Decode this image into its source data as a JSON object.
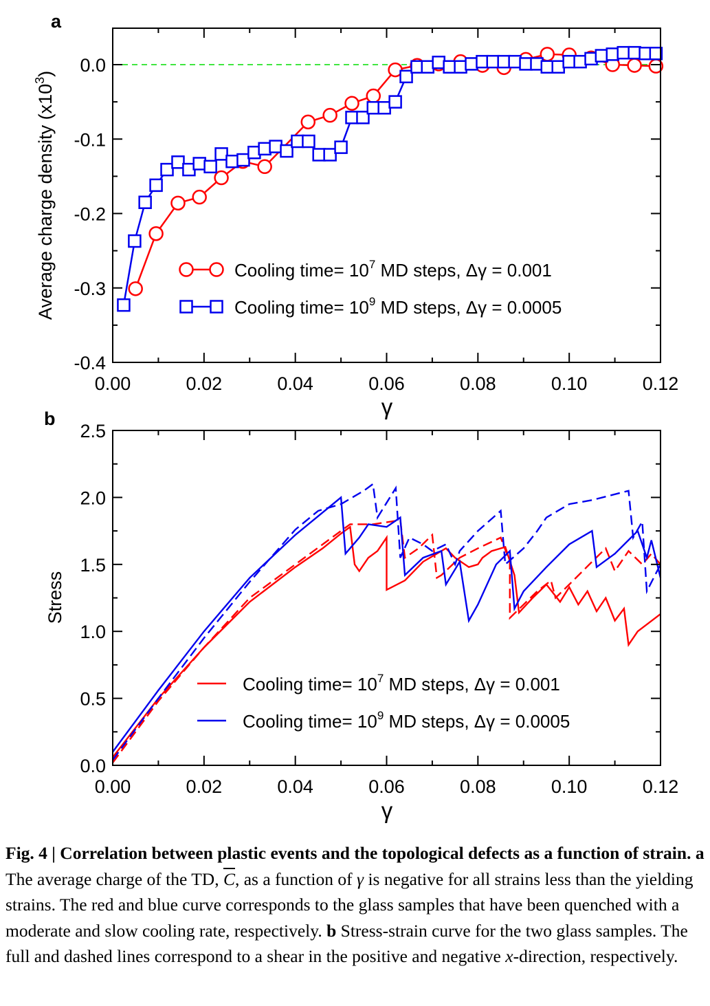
{
  "chart_data": [
    {
      "panel": "a",
      "type": "line",
      "ylabel": "Average charge density (x10",
      "ylabel_exp": "3",
      "ylabel_close": ")",
      "xlabel": "γ",
      "xlim": [
        0,
        0.12
      ],
      "ylim": [
        -0.4,
        0.05
      ],
      "xticks": [
        "0.00",
        "0.02",
        "0.04",
        "0.06",
        "0.08",
        "0.10",
        "0.12"
      ],
      "yticks": [
        "0.0",
        "-0.1",
        "-0.2",
        "-0.3",
        "-0.4"
      ],
      "reference_line": {
        "y": 0,
        "color": "#00dd00",
        "style": "dashed"
      },
      "legend_position": "lower-right",
      "series": [
        {
          "name_pre": "Cooling time= 10",
          "name_exp": "7",
          "name_post": " MD steps, Δγ = 0.001",
          "color": "#ff0000",
          "marker": "circle",
          "x": [
            0.005,
            0.0095,
            0.0143,
            0.019,
            0.0238,
            0.0285,
            0.0333,
            0.0428,
            0.0476,
            0.0524,
            0.0571,
            0.0619,
            0.0667,
            0.0714,
            0.0762,
            0.081,
            0.0857,
            0.0905,
            0.0952,
            0.1,
            0.1048,
            0.1095,
            0.1143,
            0.119
          ],
          "y": [
            -0.301,
            -0.227,
            -0.186,
            -0.178,
            -0.152,
            -0.13,
            -0.137,
            -0.077,
            -0.068,
            -0.052,
            -0.042,
            -0.007,
            -0.001,
            0.001,
            0.004,
            -0.001,
            -0.004,
            0.007,
            0.014,
            0.013,
            0.009,
            0.0,
            -0.001,
            -0.002
          ]
        },
        {
          "name_pre": "Cooling time= 10",
          "name_exp": "9",
          "name_post": " MD steps, Δγ = 0.0005",
          "color": "#0000ee",
          "marker": "square",
          "x": [
            0.0024,
            0.0048,
            0.0071,
            0.0095,
            0.0119,
            0.0143,
            0.0167,
            0.019,
            0.0214,
            0.0238,
            0.0262,
            0.0286,
            0.031,
            0.0333,
            0.0357,
            0.0381,
            0.0405,
            0.0429,
            0.0452,
            0.0476,
            0.05,
            0.0524,
            0.0548,
            0.0571,
            0.0595,
            0.0619,
            0.0643,
            0.0667,
            0.069,
            0.0714,
            0.0738,
            0.0762,
            0.0786,
            0.081,
            0.0833,
            0.0857,
            0.0881,
            0.0905,
            0.0929,
            0.0952,
            0.0976,
            0.1,
            0.1024,
            0.1048,
            0.1071,
            0.1095,
            0.1119,
            0.1143,
            0.1167,
            0.119
          ],
          "y": [
            -0.323,
            -0.237,
            -0.185,
            -0.162,
            -0.141,
            -0.131,
            -0.141,
            -0.133,
            -0.137,
            -0.12,
            -0.13,
            -0.128,
            -0.118,
            -0.113,
            -0.11,
            -0.116,
            -0.103,
            -0.103,
            -0.121,
            -0.121,
            -0.111,
            -0.071,
            -0.071,
            -0.058,
            -0.058,
            -0.05,
            -0.016,
            -0.003,
            -0.003,
            0.003,
            -0.003,
            -0.003,
            0.001,
            0.004,
            0.004,
            0.004,
            0.004,
            0.001,
            0.001,
            -0.003,
            -0.003,
            0.004,
            0.004,
            0.008,
            0.012,
            0.014,
            0.016,
            0.016,
            0.015,
            0.015
          ]
        }
      ]
    },
    {
      "panel": "b",
      "type": "line",
      "ylabel": "Stress",
      "xlabel": "γ",
      "xlim": [
        0,
        0.12
      ],
      "ylim": [
        0,
        2.5
      ],
      "xticks": [
        "0.00",
        "0.02",
        "0.04",
        "0.06",
        "0.08",
        "0.10",
        "0.12"
      ],
      "yticks": [
        "0.0",
        "0.5",
        "1.0",
        "1.5",
        "2.0",
        "2.5"
      ],
      "legend_position": "lower-right",
      "legend": [
        {
          "name_pre": "Cooling time= 10",
          "name_exp": "7",
          "name_post": " MD steps, Δγ = 0.001",
          "color": "#ff0000"
        },
        {
          "name_pre": "Cooling time= 10",
          "name_exp": "9",
          "name_post": " MD steps, Δγ = 0.0005",
          "color": "#0000ee"
        }
      ],
      "series": [
        {
          "color": "#ff0000",
          "style": "solid",
          "x": [
            0.0,
            0.01,
            0.02,
            0.03,
            0.04,
            0.046,
            0.05,
            0.052,
            0.053,
            0.054,
            0.056,
            0.058,
            0.06,
            0.06,
            0.064,
            0.068,
            0.071,
            0.073,
            0.075,
            0.078,
            0.08,
            0.081,
            0.083,
            0.086,
            0.088,
            0.089,
            0.092,
            0.095,
            0.098,
            0.1,
            0.102,
            0.104,
            0.106,
            0.108,
            0.11,
            0.112,
            0.113,
            0.115,
            0.12
          ],
          "y": [
            0.06,
            0.5,
            0.88,
            1.22,
            1.48,
            1.62,
            1.73,
            1.78,
            1.5,
            1.45,
            1.55,
            1.6,
            1.7,
            1.31,
            1.38,
            1.52,
            1.58,
            1.62,
            1.55,
            1.48,
            1.5,
            1.55,
            1.6,
            1.63,
            1.42,
            1.14,
            1.25,
            1.35,
            1.22,
            1.33,
            1.2,
            1.3,
            1.15,
            1.25,
            1.08,
            1.17,
            0.9,
            1.0,
            1.13
          ]
        },
        {
          "color": "#ff0000",
          "style": "dashed",
          "x": [
            0.0,
            0.01,
            0.02,
            0.03,
            0.04,
            0.046,
            0.05,
            0.052,
            0.057,
            0.063,
            0.064,
            0.067,
            0.07,
            0.071,
            0.072,
            0.076,
            0.08,
            0.085,
            0.087,
            0.087,
            0.093,
            0.096,
            0.097,
            0.1,
            0.105,
            0.108,
            0.11,
            0.113,
            0.116,
            0.118,
            0.12
          ],
          "y": [
            0.02,
            0.48,
            0.88,
            1.25,
            1.5,
            1.65,
            1.75,
            1.8,
            1.8,
            1.83,
            1.55,
            1.62,
            1.72,
            1.4,
            1.42,
            1.55,
            1.62,
            1.7,
            1.52,
            1.1,
            1.3,
            1.38,
            1.25,
            1.35,
            1.52,
            1.62,
            1.45,
            1.6,
            1.5,
            1.58,
            1.5
          ]
        },
        {
          "color": "#0000ee",
          "style": "solid",
          "x": [
            0.0,
            0.01,
            0.02,
            0.03,
            0.04,
            0.05,
            0.051,
            0.054,
            0.056,
            0.06,
            0.063,
            0.064,
            0.068,
            0.072,
            0.073,
            0.076,
            0.078,
            0.08,
            0.084,
            0.087,
            0.088,
            0.09,
            0.095,
            0.1,
            0.105,
            0.106,
            0.11,
            0.115,
            0.117,
            0.118,
            0.12
          ],
          "y": [
            0.1,
            0.56,
            1.0,
            1.4,
            1.72,
            2.0,
            1.58,
            1.7,
            1.8,
            1.78,
            1.85,
            1.42,
            1.55,
            1.6,
            1.35,
            1.52,
            1.08,
            1.2,
            1.5,
            1.6,
            1.17,
            1.3,
            1.48,
            1.65,
            1.75,
            1.48,
            1.58,
            1.75,
            1.55,
            1.68,
            1.4
          ]
        },
        {
          "color": "#0000ee",
          "style": "dashed",
          "x": [
            0.0,
            0.01,
            0.02,
            0.03,
            0.04,
            0.045,
            0.05,
            0.055,
            0.057,
            0.058,
            0.062,
            0.063,
            0.065,
            0.068,
            0.07,
            0.073,
            0.075,
            0.076,
            0.08,
            0.085,
            0.086,
            0.09,
            0.093,
            0.095,
            0.1,
            0.105,
            0.113,
            0.114,
            0.116,
            0.117,
            0.12
          ],
          "y": [
            0.04,
            0.5,
            0.95,
            1.37,
            1.76,
            1.9,
            1.95,
            2.05,
            2.1,
            1.85,
            2.07,
            1.55,
            1.7,
            1.65,
            1.6,
            1.65,
            1.5,
            1.6,
            1.75,
            1.9,
            1.5,
            1.62,
            1.75,
            1.85,
            1.95,
            1.98,
            2.05,
            1.7,
            1.82,
            1.3,
            1.5
          ]
        }
      ]
    }
  ],
  "caption": {
    "fig": "Fig. 4 | Correlation between plastic events and the topological defects as a function of strain.",
    "a_label": "a",
    "a_text_1": " The average charge of the TD, ",
    "cbar": "C",
    "a_text_2": ", as a function of ",
    "gamma": "γ",
    "a_text_3": " is negative for all strains less than the yielding strains. The red and blue curve corresponds to the glass samples that have been quenched with a moderate and slow cooling rate, respectively. ",
    "b_label": "b",
    "b_text_1": " Stress-strain curve for the two glass samples. The full and dashed lines correspond to a shear in the positive and negative ",
    "x_italic": "x",
    "b_text_2": "-direction, respectively."
  }
}
